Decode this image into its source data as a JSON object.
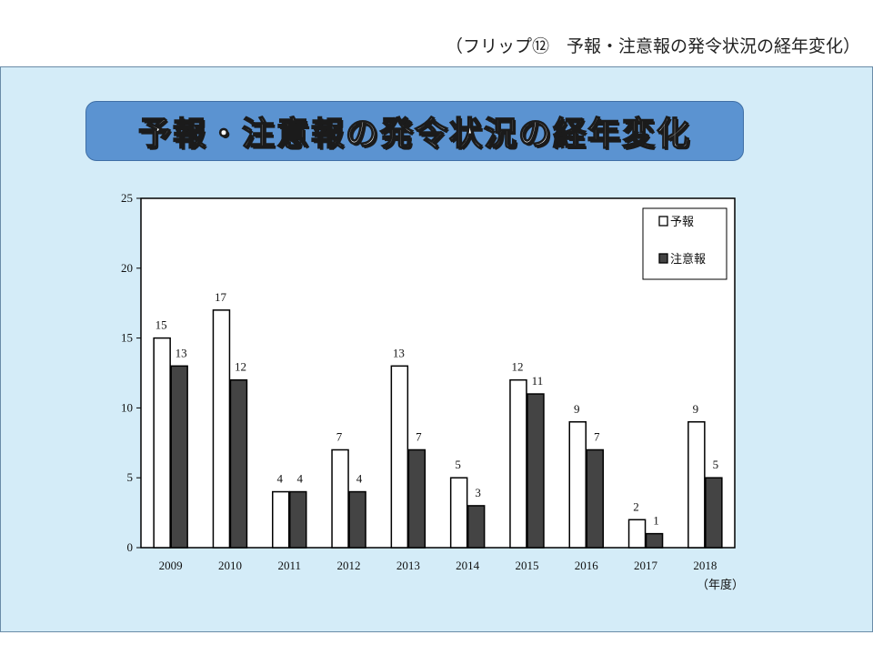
{
  "header": {
    "caption": "（フリップ⑫　予報・注意報の発令状況の経年変化）"
  },
  "banner": {
    "title": "予報・注意報の発令状況の経年変化"
  },
  "colors": {
    "panel": "#d4ecf8",
    "banner": "#5b93d1",
    "bar_forecast": "#ffffff",
    "bar_advisory": "#444444"
  },
  "chart_data": {
    "type": "bar",
    "title": "",
    "categories": [
      "2009",
      "2010",
      "2011",
      "2012",
      "2013",
      "2014",
      "2015",
      "2016",
      "2017",
      "2018"
    ],
    "series": [
      {
        "name": "予報",
        "values": [
          15,
          17,
          4,
          7,
          13,
          5,
          12,
          9,
          2,
          9
        ]
      },
      {
        "name": "注意報",
        "values": [
          13,
          12,
          4,
          4,
          7,
          3,
          11,
          7,
          1,
          5
        ]
      }
    ],
    "xlabel": "（年度）",
    "ylabel": "",
    "ylim": [
      0,
      25
    ],
    "yticks": [
      0,
      5,
      10,
      15,
      20,
      25
    ],
    "grid": false,
    "legend": "top-right",
    "data_labels": true
  }
}
